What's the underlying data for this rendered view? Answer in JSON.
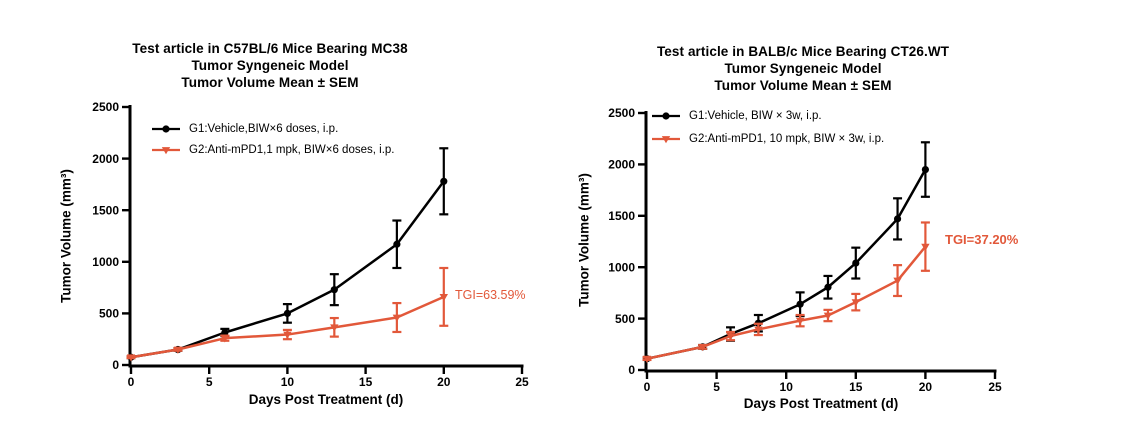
{
  "page": {
    "background": "#ffffff"
  },
  "colors": {
    "g1": "#000000",
    "g2": "#E2583A",
    "axis": "#000000"
  },
  "chart_data": [
    {
      "type": "line",
      "title_lines": [
        "Test article in C57BL/6 Mice Bearing MC38",
        "Tumor Syngeneic Model",
        "Tumor Volume Mean ± SEM"
      ],
      "xlabel": "Days Post Treatment (d)",
      "ylabel": "Tumor Volume (mm³)",
      "xlim": [
        0,
        25
      ],
      "ylim": [
        0,
        2500
      ],
      "xticks": [
        0,
        5,
        10,
        15,
        20,
        25
      ],
      "yticks": [
        0,
        500,
        1000,
        1500,
        2000,
        2500
      ],
      "grid": false,
      "legend_position": "top-left-inside",
      "x": [
        0,
        3,
        6,
        10,
        13,
        17,
        20
      ],
      "series": [
        {
          "name": "G1:Vehicle,BIW×6 doses, i.p.",
          "color": "#000000",
          "marker": "circle",
          "values": [
            75,
            150,
            315,
            500,
            730,
            1170,
            1780
          ],
          "sem": [
            8,
            12,
            35,
            90,
            150,
            230,
            320
          ]
        },
        {
          "name": "G2:Anti-mPD1,1 mpk, BIW×6 doses, i.p.",
          "color": "#E2583A",
          "marker": "triangle-down",
          "values": [
            75,
            150,
            260,
            295,
            365,
            460,
            660
          ],
          "sem": [
            8,
            12,
            25,
            45,
            90,
            140,
            280
          ]
        }
      ],
      "annotation": {
        "text": "TGI=63.59%",
        "color": "#E2583A",
        "bold": false
      }
    },
    {
      "type": "line",
      "title_lines": [
        "Test article in BALB/c Mice Bearing CT26.WT",
        "Tumor Syngeneic Model",
        "Tumor Volume Mean ± SEM"
      ],
      "xlabel": "Days Post Treatment (d)",
      "ylabel": "Tumor Volume (mm³)",
      "xlim": [
        0,
        25
      ],
      "ylim": [
        0,
        2500
      ],
      "xticks": [
        0,
        5,
        10,
        15,
        20,
        25
      ],
      "yticks": [
        0,
        500,
        1000,
        1500,
        2000,
        2500
      ],
      "grid": false,
      "legend_position": "top-left-inside",
      "x": [
        0,
        4,
        6,
        8,
        11,
        13,
        15,
        18,
        20
      ],
      "series": [
        {
          "name": "G1:Vehicle, BIW × 3w, i.p.",
          "color": "#000000",
          "marker": "circle",
          "values": [
            110,
            225,
            350,
            455,
            640,
            805,
            1040,
            1470,
            1950
          ],
          "sem": [
            12,
            18,
            65,
            80,
            115,
            110,
            150,
            200,
            265
          ]
        },
        {
          "name": "G2:Anti-mPD1, 10 mpk, BIW × 3w, i.p.",
          "color": "#E2583A",
          "marker": "triangle-down",
          "values": [
            110,
            225,
            330,
            395,
            480,
            530,
            660,
            870,
            1200
          ],
          "sem": [
            12,
            18,
            40,
            55,
            55,
            55,
            80,
            150,
            235
          ]
        }
      ],
      "annotation": {
        "text": "TGI=37.20%",
        "color": "#E2583A",
        "bold": true
      }
    }
  ]
}
